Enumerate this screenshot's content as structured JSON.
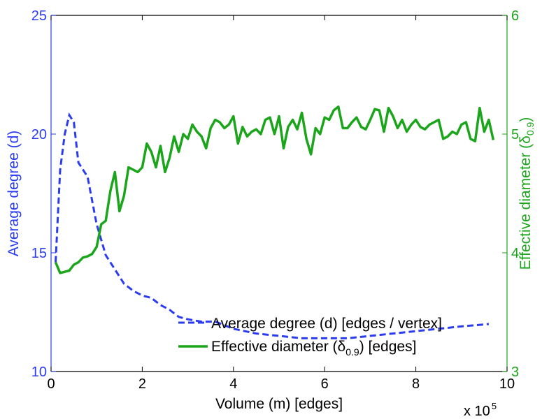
{
  "chart_data": {
    "type": "line",
    "title": "",
    "xlabel": "Volume (m) [edges]",
    "x_multiplier": "x 10",
    "x_multiplier_exp": "5",
    "xlim": [
      0,
      10
    ],
    "x_ticks": [
      "0",
      "2",
      "4",
      "6",
      "8",
      "10"
    ],
    "y_left": {
      "label": "Average degree (d)",
      "range": [
        10,
        25
      ],
      "ticks": [
        "10",
        "15",
        "20",
        "25"
      ],
      "color": "#2b3cf0"
    },
    "y_right": {
      "label": "Effective diameter (δ",
      "label_sub": "0.9",
      "label_end": ")",
      "range": [
        3,
        6
      ],
      "ticks": [
        "3",
        "4",
        "5",
        "6"
      ],
      "color": "#1aa51a"
    },
    "legend_position": "bottom-right",
    "series": [
      {
        "name": "Average degree (d) [edges / vertex]",
        "axis": "left",
        "style": "dashed",
        "color": "#2b3cf0",
        "x": [
          0.1,
          0.2,
          0.3,
          0.4,
          0.5,
          0.6,
          0.8,
          1.0,
          1.2,
          1.4,
          1.6,
          1.8,
          2.0,
          2.2,
          2.4,
          2.6,
          2.8,
          3.0,
          3.3,
          3.6,
          4.0,
          4.5,
          5.0,
          5.5,
          6.0,
          6.5,
          7.0,
          7.5,
          8.0,
          8.5,
          9.0,
          9.6
        ],
        "values": [
          14.6,
          18.5,
          20.0,
          20.8,
          20.5,
          18.8,
          18.2,
          16.2,
          14.9,
          14.3,
          13.7,
          13.4,
          13.2,
          13.1,
          12.8,
          12.6,
          12.3,
          12.2,
          12.1,
          12.1,
          11.8,
          11.6,
          11.5,
          11.4,
          11.4,
          11.4,
          11.5,
          11.6,
          11.7,
          11.8,
          11.9,
          12.0
        ]
      },
      {
        "name": "Effective diameter (δ",
        "name_sub": "0.9",
        "name_end": ") [edges]",
        "axis": "right",
        "style": "solid",
        "color": "#1aa51a",
        "x": [
          0.1,
          0.2,
          0.3,
          0.4,
          0.5,
          0.6,
          0.7,
          0.8,
          0.9,
          1.0,
          1.1,
          1.2,
          1.3,
          1.4,
          1.5,
          1.6,
          1.7,
          1.8,
          1.9,
          2.0,
          2.1,
          2.2,
          2.3,
          2.4,
          2.5,
          2.6,
          2.7,
          2.8,
          2.9,
          3.0,
          3.1,
          3.2,
          3.3,
          3.4,
          3.5,
          3.6,
          3.7,
          3.8,
          3.9,
          4.0,
          4.1,
          4.2,
          4.3,
          4.4,
          4.5,
          4.6,
          4.7,
          4.8,
          4.9,
          5.0,
          5.1,
          5.2,
          5.3,
          5.4,
          5.5,
          5.6,
          5.7,
          5.8,
          5.9,
          6.0,
          6.1,
          6.2,
          6.3,
          6.4,
          6.5,
          6.6,
          6.7,
          6.8,
          6.9,
          7.0,
          7.1,
          7.2,
          7.3,
          7.4,
          7.5,
          7.6,
          7.7,
          7.8,
          7.9,
          8.0,
          8.1,
          8.2,
          8.3,
          8.4,
          8.5,
          8.6,
          8.7,
          8.8,
          8.9,
          9.0,
          9.1,
          9.2,
          9.3,
          9.4,
          9.5,
          9.6,
          9.7
        ],
        "values": [
          3.92,
          3.83,
          3.84,
          3.85,
          3.9,
          3.92,
          3.96,
          3.97,
          3.99,
          4.05,
          4.24,
          4.27,
          4.52,
          4.68,
          4.35,
          4.48,
          4.72,
          4.7,
          4.68,
          4.72,
          4.92,
          4.85,
          4.72,
          4.9,
          4.68,
          4.8,
          4.98,
          4.85,
          5.0,
          4.96,
          5.08,
          5.02,
          4.98,
          4.88,
          5.05,
          5.12,
          5.1,
          5.05,
          5.08,
          5.15,
          4.92,
          5.06,
          4.98,
          5.02,
          5.04,
          5.0,
          5.12,
          5.14,
          5.0,
          5.15,
          4.88,
          5.06,
          5.12,
          5.04,
          5.18,
          4.96,
          4.83,
          5.05,
          5.0,
          5.14,
          5.12,
          5.2,
          5.23,
          5.05,
          5.05,
          5.1,
          5.14,
          5.06,
          5.04,
          5.12,
          5.21,
          5.2,
          5.02,
          5.22,
          5.15,
          5.05,
          5.12,
          5.02,
          5.08,
          5.12,
          5.06,
          5.04,
          5.08,
          5.1,
          5.12,
          4.96,
          4.98,
          5.02,
          5.0,
          5.08,
          5.1,
          4.96,
          4.94,
          5.22,
          5.02,
          5.12,
          4.95
        ]
      }
    ]
  }
}
